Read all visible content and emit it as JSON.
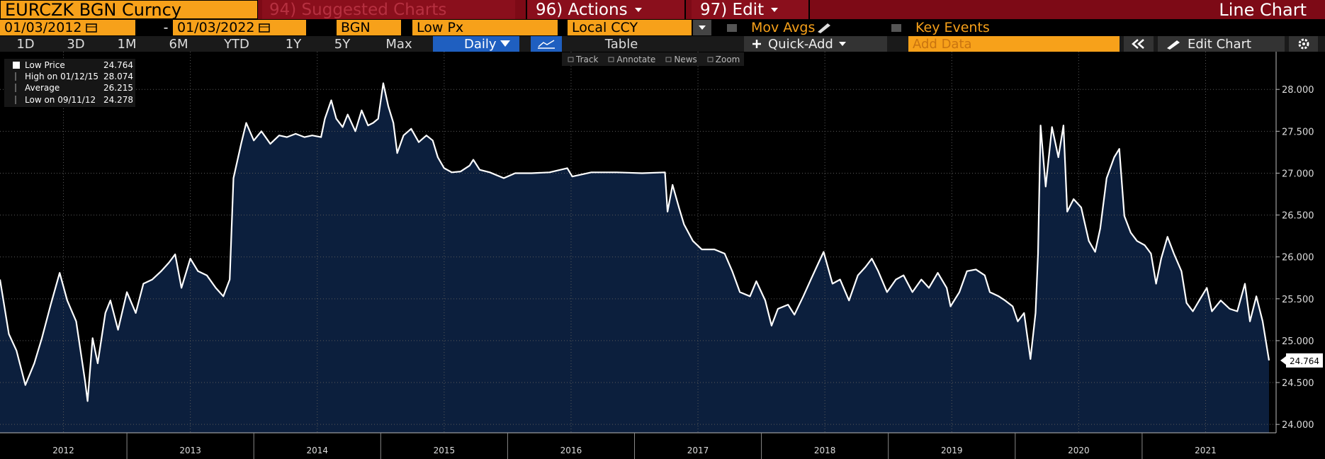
{
  "toolbar": {
    "security": "EURCZK BGN Curncy",
    "suggested": "94) Suggested Charts",
    "actions": "96) Actions",
    "edit": "97) Edit",
    "chart_type": "Line Chart"
  },
  "settings_bar": {
    "start_date": "01/03/2012",
    "date_separator": "-",
    "end_date": "01/03/2022",
    "source": "BGN",
    "field": "Low Px",
    "currency": "Local CCY",
    "mov_avgs": "Mov Avgs",
    "key_events": "Key Events"
  },
  "range_bar": {
    "ranges": [
      "1D",
      "3D",
      "1M",
      "6M",
      "YTD",
      "1Y",
      "5Y",
      "Max"
    ],
    "period": "Daily",
    "table": "Table",
    "quick_add": "Quick-Add",
    "add_data": "Add Data",
    "edit_chart": "Edit Chart"
  },
  "chart_tools": [
    "Track",
    "Annotate",
    "News",
    "Zoom"
  ],
  "chart_data": {
    "type": "line",
    "x": [
      2012.0,
      2012.07,
      2012.13,
      2012.2,
      2012.27,
      2012.33,
      2012.4,
      2012.47,
      2012.53,
      2012.6,
      2012.67,
      2012.69,
      2012.73,
      2012.77,
      2012.83,
      2012.87,
      2012.93,
      2013.0,
      2013.07,
      2013.13,
      2013.2,
      2013.27,
      2013.33,
      2013.38,
      2013.43,
      2013.5,
      2013.56,
      2013.63,
      2013.7,
      2013.76,
      2013.81,
      2013.84,
      2013.9,
      2013.94,
      2014.0,
      2014.06,
      2014.13,
      2014.2,
      2014.26,
      2014.33,
      2014.4,
      2014.46,
      2014.53,
      2014.56,
      2014.61,
      2014.65,
      2014.7,
      2014.74,
      2014.8,
      2014.85,
      2014.9,
      2014.94,
      2014.98,
      2015.02,
      2015.06,
      2015.1,
      2015.13,
      2015.18,
      2015.24,
      2015.3,
      2015.36,
      2015.41,
      2015.45,
      2015.5,
      2015.56,
      2015.63,
      2015.7,
      2015.73,
      2015.78,
      2015.86,
      2015.97,
      2016.06,
      2016.19,
      2016.33,
      2016.47,
      2016.51,
      2016.66,
      2016.86,
      2017.06,
      2017.24,
      2017.26,
      2017.3,
      2017.35,
      2017.39,
      2017.46,
      2017.53,
      2017.63,
      2017.71,
      2017.77,
      2017.83,
      2017.91,
      2017.96,
      2018.03,
      2018.08,
      2018.13,
      2018.21,
      2018.26,
      2018.33,
      2018.39,
      2018.45,
      2018.49,
      2018.56,
      2018.62,
      2018.69,
      2018.76,
      2018.82,
      2018.87,
      2018.92,
      2018.99,
      2019.06,
      2019.12,
      2019.19,
      2019.26,
      2019.32,
      2019.39,
      2019.46,
      2019.49,
      2019.56,
      2019.62,
      2019.69,
      2019.76,
      2019.8,
      2019.87,
      2019.92,
      2019.98,
      2020.02,
      2020.07,
      2020.12,
      2020.16,
      2020.18,
      2020.2,
      2020.24,
      2020.29,
      2020.34,
      2020.38,
      2020.41,
      2020.46,
      2020.52,
      2020.58,
      2020.63,
      2020.67,
      2020.72,
      2020.78,
      2020.82,
      2020.86,
      2020.91,
      2020.96,
      2021.02,
      2021.07,
      2021.11,
      2021.15,
      2021.2,
      2021.25,
      2021.31,
      2021.35,
      2021.4,
      2021.45,
      2021.51,
      2021.55,
      2021.62,
      2021.69,
      2021.75,
      2021.81,
      2021.85,
      2021.9,
      2021.95,
      2022.0
    ],
    "series": [
      {
        "name": "Low Price",
        "color": "#ffffff",
        "values": [
          25.73,
          25.08,
          24.88,
          24.47,
          24.73,
          25.03,
          25.43,
          25.81,
          25.48,
          25.23,
          24.52,
          24.278,
          25.03,
          24.73,
          25.33,
          25.48,
          25.13,
          25.58,
          25.33,
          25.68,
          25.73,
          25.83,
          25.93,
          26.03,
          25.63,
          25.98,
          25.83,
          25.78,
          25.63,
          25.53,
          25.73,
          26.94,
          27.35,
          27.6,
          27.39,
          27.5,
          27.35,
          27.45,
          27.43,
          27.47,
          27.43,
          27.45,
          27.43,
          27.65,
          27.87,
          27.65,
          27.55,
          27.7,
          27.5,
          27.75,
          27.57,
          27.6,
          27.65,
          28.074,
          27.8,
          27.6,
          27.24,
          27.45,
          27.53,
          27.37,
          27.45,
          27.39,
          27.19,
          27.06,
          27.01,
          27.02,
          27.09,
          27.16,
          27.04,
          27.01,
          26.94,
          27.0,
          27.0,
          27.01,
          27.06,
          26.96,
          27.01,
          27.01,
          27.0,
          27.01,
          26.54,
          26.86,
          26.59,
          26.39,
          26.19,
          26.09,
          26.09,
          26.04,
          25.83,
          25.58,
          25.53,
          25.71,
          25.48,
          25.18,
          25.38,
          25.43,
          25.31,
          25.53,
          25.73,
          25.93,
          26.06,
          25.68,
          25.73,
          25.48,
          25.78,
          25.88,
          25.98,
          25.83,
          25.58,
          25.73,
          25.78,
          25.58,
          25.73,
          25.63,
          25.81,
          25.63,
          25.41,
          25.58,
          25.83,
          25.85,
          25.78,
          25.58,
          25.53,
          25.48,
          25.41,
          25.23,
          25.33,
          24.78,
          25.33,
          26.04,
          27.57,
          26.84,
          27.55,
          27.19,
          27.57,
          26.54,
          26.69,
          26.59,
          26.19,
          26.06,
          26.34,
          26.94,
          27.19,
          27.29,
          26.49,
          26.29,
          26.19,
          26.14,
          26.04,
          25.68,
          25.98,
          26.24,
          26.04,
          25.83,
          25.45,
          25.35,
          25.48,
          25.63,
          25.35,
          25.48,
          25.38,
          25.35,
          25.68,
          25.23,
          25.53,
          25.23,
          24.764
        ]
      }
    ],
    "stats": [
      {
        "label": "High on 01/12/15",
        "value": 28.074
      },
      {
        "label": "Average",
        "value": 26.215
      },
      {
        "label": "Low on 09/11/12",
        "value": 24.278
      }
    ],
    "xlim": [
      2012,
      2022
    ],
    "xticks": [
      {
        "value": 2012.5,
        "label": "2012"
      },
      {
        "value": 2013.5,
        "label": "2013"
      },
      {
        "value": 2014.5,
        "label": "2014"
      },
      {
        "value": 2015.5,
        "label": "2015"
      },
      {
        "value": 2016.5,
        "label": "2016"
      },
      {
        "value": 2017.5,
        "label": "2017"
      },
      {
        "value": 2018.5,
        "label": "2018"
      },
      {
        "value": 2019.5,
        "label": "2019"
      },
      {
        "value": 2020.5,
        "label": "2020"
      },
      {
        "value": 2021.5,
        "label": "2021"
      }
    ],
    "ylim": [
      23.9,
      28.45
    ],
    "yticks": [
      {
        "value": 24,
        "label": "24.000"
      },
      {
        "value": 24.5,
        "label": "24.500"
      },
      {
        "value": 25,
        "label": "25.000"
      },
      {
        "value": 25.5,
        "label": "25.500"
      },
      {
        "value": 26,
        "label": "26.000"
      },
      {
        "value": 26.5,
        "label": "26.500"
      },
      {
        "value": 27,
        "label": "27.000"
      },
      {
        "value": 27.5,
        "label": "27.500"
      },
      {
        "value": 28,
        "label": "28.000"
      }
    ],
    "grid": true,
    "fill_color": "#0c1f3d"
  }
}
